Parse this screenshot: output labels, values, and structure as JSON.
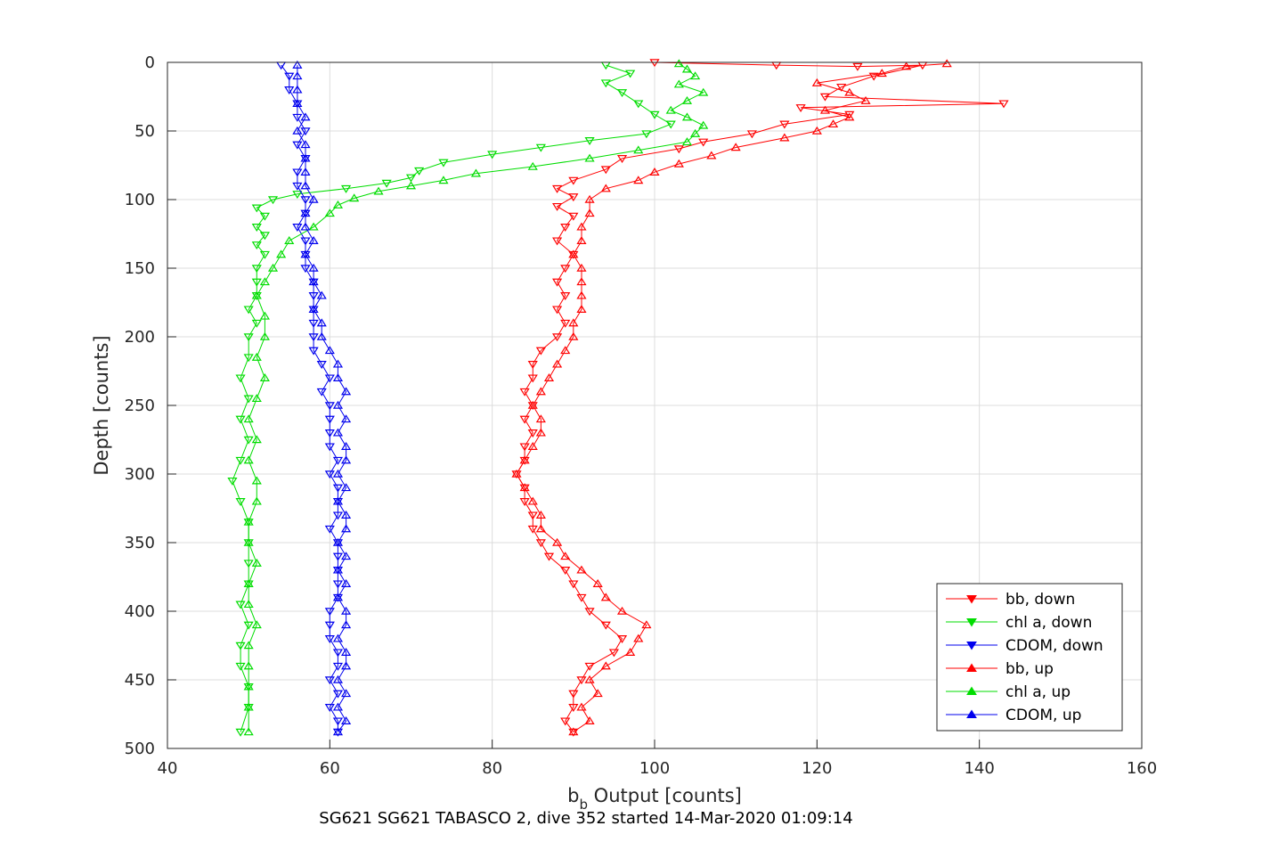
{
  "chart_data": {
    "type": "line",
    "title": "",
    "caption": "SG621 SG621 TABASCO 2, dive 352 started 14-Mar-2020 01:09:14",
    "xlabel_main": "b",
    "xlabel_sub": "b",
    "xlabel_rest": " Output [counts]",
    "ylabel": "Depth [counts]",
    "xlim": [
      40,
      160
    ],
    "ylim": [
      0,
      500
    ],
    "y_reversed": true,
    "grid": true,
    "legend_position": "bottom-right",
    "xticks": [
      "40",
      "60",
      "80",
      "100",
      "120",
      "140",
      "160"
    ],
    "yticks": [
      "0",
      "50",
      "100",
      "150",
      "200",
      "250",
      "300",
      "350",
      "400",
      "450",
      "500"
    ],
    "series": [
      {
        "name": "bb, down",
        "color": "#ff0000",
        "marker": "triangle-down",
        "points": [
          [
            100,
            0
          ],
          [
            115,
            2
          ],
          [
            125,
            3
          ],
          [
            133,
            2
          ],
          [
            127,
            10
          ],
          [
            123,
            18
          ],
          [
            121,
            25
          ],
          [
            143,
            30
          ],
          [
            118,
            33
          ],
          [
            124,
            38
          ],
          [
            116,
            45
          ],
          [
            112,
            52
          ],
          [
            106,
            58
          ],
          [
            103,
            63
          ],
          [
            96,
            70
          ],
          [
            94,
            78
          ],
          [
            90,
            86
          ],
          [
            88,
            92
          ],
          [
            90,
            98
          ],
          [
            88,
            105
          ],
          [
            90,
            112
          ],
          [
            89,
            120
          ],
          [
            88,
            130
          ],
          [
            90,
            140
          ],
          [
            89,
            150
          ],
          [
            88,
            160
          ],
          [
            89,
            170
          ],
          [
            88,
            180
          ],
          [
            89,
            190
          ],
          [
            88,
            200
          ],
          [
            86,
            210
          ],
          [
            85,
            220
          ],
          [
            85,
            230
          ],
          [
            84,
            240
          ],
          [
            85,
            250
          ],
          [
            84,
            260
          ],
          [
            85,
            270
          ],
          [
            84,
            280
          ],
          [
            84,
            290
          ],
          [
            83,
            300
          ],
          [
            84,
            310
          ],
          [
            84,
            320
          ],
          [
            85,
            330
          ],
          [
            85,
            340
          ],
          [
            86,
            350
          ],
          [
            87,
            360
          ],
          [
            89,
            370
          ],
          [
            90,
            380
          ],
          [
            91,
            390
          ],
          [
            92,
            400
          ],
          [
            94,
            410
          ],
          [
            96,
            420
          ],
          [
            95,
            430
          ],
          [
            92,
            440
          ],
          [
            91,
            450
          ],
          [
            90,
            460
          ],
          [
            90,
            470
          ],
          [
            89,
            480
          ],
          [
            90,
            488
          ]
        ]
      },
      {
        "name": "chl a, down",
        "color": "#00dd00",
        "marker": "triangle-down",
        "points": [
          [
            94,
            2
          ],
          [
            97,
            8
          ],
          [
            94,
            15
          ],
          [
            96,
            22
          ],
          [
            98,
            30
          ],
          [
            100,
            38
          ],
          [
            102,
            45
          ],
          [
            99,
            52
          ],
          [
            92,
            57
          ],
          [
            86,
            62
          ],
          [
            80,
            67
          ],
          [
            74,
            73
          ],
          [
            71,
            79
          ],
          [
            70,
            84
          ],
          [
            67,
            88
          ],
          [
            62,
            92
          ],
          [
            56,
            96
          ],
          [
            53,
            100
          ],
          [
            51,
            106
          ],
          [
            52,
            112
          ],
          [
            51,
            120
          ],
          [
            52,
            126
          ],
          [
            51,
            133
          ],
          [
            52,
            140
          ],
          [
            51,
            150
          ],
          [
            51,
            160
          ],
          [
            51,
            170
          ],
          [
            50,
            180
          ],
          [
            51,
            190
          ],
          [
            50,
            200
          ],
          [
            50,
            215
          ],
          [
            49,
            230
          ],
          [
            50,
            245
          ],
          [
            49,
            260
          ],
          [
            50,
            275
          ],
          [
            49,
            290
          ],
          [
            48,
            305
          ],
          [
            49,
            320
          ],
          [
            50,
            335
          ],
          [
            50,
            350
          ],
          [
            50,
            365
          ],
          [
            50,
            380
          ],
          [
            49,
            395
          ],
          [
            50,
            410
          ],
          [
            49,
            425
          ],
          [
            49,
            440
          ],
          [
            50,
            455
          ],
          [
            50,
            470
          ],
          [
            49,
            488
          ]
        ]
      },
      {
        "name": "CDOM, down",
        "color": "#0000ee",
        "marker": "triangle-down",
        "points": [
          [
            54,
            2
          ],
          [
            55,
            10
          ],
          [
            55,
            20
          ],
          [
            56,
            30
          ],
          [
            56,
            40
          ],
          [
            57,
            50
          ],
          [
            56,
            60
          ],
          [
            57,
            70
          ],
          [
            56,
            80
          ],
          [
            56,
            90
          ],
          [
            57,
            100
          ],
          [
            57,
            110
          ],
          [
            56,
            120
          ],
          [
            57,
            130
          ],
          [
            57,
            140
          ],
          [
            57,
            150
          ],
          [
            58,
            160
          ],
          [
            58,
            170
          ],
          [
            58,
            180
          ],
          [
            58,
            190
          ],
          [
            58,
            200
          ],
          [
            58,
            210
          ],
          [
            59,
            220
          ],
          [
            60,
            230
          ],
          [
            59,
            240
          ],
          [
            60,
            250
          ],
          [
            60,
            260
          ],
          [
            60,
            270
          ],
          [
            60,
            280
          ],
          [
            61,
            290
          ],
          [
            60,
            300
          ],
          [
            61,
            310
          ],
          [
            61,
            320
          ],
          [
            61,
            330
          ],
          [
            60,
            340
          ],
          [
            61,
            350
          ],
          [
            61,
            360
          ],
          [
            61,
            370
          ],
          [
            61,
            380
          ],
          [
            61,
            390
          ],
          [
            60,
            400
          ],
          [
            60,
            410
          ],
          [
            60,
            420
          ],
          [
            61,
            430
          ],
          [
            61,
            440
          ],
          [
            60,
            450
          ],
          [
            61,
            460
          ],
          [
            60,
            470
          ],
          [
            61,
            480
          ],
          [
            61,
            488
          ]
        ]
      },
      {
        "name": "bb, up",
        "color": "#ff0000",
        "marker": "triangle-up",
        "points": [
          [
            90,
            488
          ],
          [
            92,
            480
          ],
          [
            91,
            470
          ],
          [
            93,
            460
          ],
          [
            92,
            450
          ],
          [
            94,
            440
          ],
          [
            97,
            430
          ],
          [
            98,
            420
          ],
          [
            99,
            410
          ],
          [
            96,
            400
          ],
          [
            94,
            390
          ],
          [
            93,
            380
          ],
          [
            91,
            370
          ],
          [
            89,
            360
          ],
          [
            88,
            350
          ],
          [
            86,
            340
          ],
          [
            86,
            330
          ],
          [
            85,
            320
          ],
          [
            84,
            310
          ],
          [
            83,
            300
          ],
          [
            84,
            290
          ],
          [
            85,
            280
          ],
          [
            86,
            270
          ],
          [
            86,
            260
          ],
          [
            85,
            250
          ],
          [
            86,
            240
          ],
          [
            87,
            230
          ],
          [
            88,
            220
          ],
          [
            89,
            210
          ],
          [
            90,
            200
          ],
          [
            90,
            190
          ],
          [
            91,
            180
          ],
          [
            91,
            170
          ],
          [
            91,
            160
          ],
          [
            91,
            150
          ],
          [
            90,
            140
          ],
          [
            91,
            130
          ],
          [
            91,
            120
          ],
          [
            92,
            110
          ],
          [
            92,
            100
          ],
          [
            94,
            92
          ],
          [
            98,
            86
          ],
          [
            100,
            80
          ],
          [
            103,
            74
          ],
          [
            107,
            68
          ],
          [
            110,
            62
          ],
          [
            116,
            55
          ],
          [
            120,
            50
          ],
          [
            122,
            45
          ],
          [
            124,
            40
          ],
          [
            121,
            35
          ],
          [
            126,
            28
          ],
          [
            124,
            22
          ],
          [
            120,
            15
          ],
          [
            128,
            8
          ],
          [
            131,
            3
          ],
          [
            136,
            1
          ]
        ]
      },
      {
        "name": "chl a, up",
        "color": "#00dd00",
        "marker": "triangle-up",
        "points": [
          [
            50,
            488
          ],
          [
            50,
            470
          ],
          [
            50,
            455
          ],
          [
            50,
            440
          ],
          [
            50,
            425
          ],
          [
            51,
            410
          ],
          [
            50,
            395
          ],
          [
            50,
            380
          ],
          [
            51,
            365
          ],
          [
            50,
            350
          ],
          [
            50,
            335
          ],
          [
            51,
            320
          ],
          [
            51,
            305
          ],
          [
            50,
            290
          ],
          [
            51,
            275
          ],
          [
            50,
            260
          ],
          [
            51,
            245
          ],
          [
            52,
            230
          ],
          [
            51,
            215
          ],
          [
            52,
            200
          ],
          [
            52,
            185
          ],
          [
            51,
            170
          ],
          [
            52,
            160
          ],
          [
            53,
            150
          ],
          [
            54,
            140
          ],
          [
            55,
            130
          ],
          [
            58,
            120
          ],
          [
            60,
            110
          ],
          [
            61,
            104
          ],
          [
            63,
            99
          ],
          [
            66,
            94
          ],
          [
            70,
            90
          ],
          [
            74,
            86
          ],
          [
            78,
            81
          ],
          [
            85,
            76
          ],
          [
            92,
            70
          ],
          [
            98,
            64
          ],
          [
            104,
            58
          ],
          [
            105,
            52
          ],
          [
            106,
            46
          ],
          [
            104,
            40
          ],
          [
            102,
            35
          ],
          [
            104,
            28
          ],
          [
            106,
            22
          ],
          [
            103,
            16
          ],
          [
            105,
            10
          ],
          [
            104,
            5
          ],
          [
            103,
            1
          ]
        ]
      },
      {
        "name": "CDOM, up",
        "color": "#0000ee",
        "marker": "triangle-up",
        "points": [
          [
            61,
            488
          ],
          [
            62,
            480
          ],
          [
            61,
            470
          ],
          [
            62,
            460
          ],
          [
            61,
            450
          ],
          [
            62,
            440
          ],
          [
            62,
            430
          ],
          [
            61,
            420
          ],
          [
            62,
            410
          ],
          [
            62,
            400
          ],
          [
            61,
            390
          ],
          [
            62,
            380
          ],
          [
            61,
            370
          ],
          [
            62,
            360
          ],
          [
            61,
            350
          ],
          [
            62,
            340
          ],
          [
            62,
            330
          ],
          [
            61,
            320
          ],
          [
            62,
            310
          ],
          [
            61,
            300
          ],
          [
            62,
            290
          ],
          [
            62,
            280
          ],
          [
            61,
            270
          ],
          [
            62,
            260
          ],
          [
            61,
            250
          ],
          [
            62,
            240
          ],
          [
            61,
            230
          ],
          [
            61,
            220
          ],
          [
            60,
            210
          ],
          [
            59,
            200
          ],
          [
            59,
            190
          ],
          [
            58,
            180
          ],
          [
            59,
            170
          ],
          [
            58,
            160
          ],
          [
            58,
            150
          ],
          [
            57,
            140
          ],
          [
            58,
            130
          ],
          [
            57,
            120
          ],
          [
            57,
            110
          ],
          [
            58,
            100
          ],
          [
            57,
            90
          ],
          [
            57,
            80
          ],
          [
            57,
            70
          ],
          [
            57,
            60
          ],
          [
            56,
            50
          ],
          [
            57,
            40
          ],
          [
            56,
            30
          ],
          [
            56,
            20
          ],
          [
            56,
            10
          ],
          [
            56,
            2
          ]
        ]
      }
    ]
  }
}
